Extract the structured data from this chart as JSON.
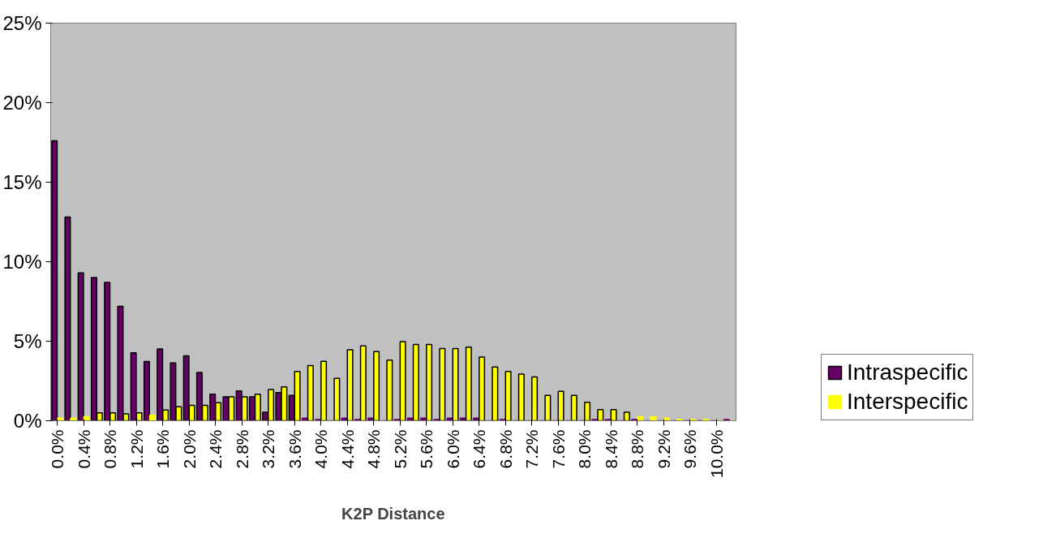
{
  "chart_data": {
    "type": "bar",
    "xlabel": "K2P Distance",
    "categories": [
      "0.0%",
      null,
      "0.4%",
      null,
      "0.8%",
      null,
      "1.2%",
      null,
      "1.6%",
      null,
      "2.0%",
      null,
      "2.4%",
      null,
      "2.8%",
      null,
      "3.2%",
      null,
      "3.6%",
      null,
      "4.0%",
      null,
      "4.4%",
      null,
      "4.8%",
      null,
      "5.2%",
      null,
      "5.6%",
      null,
      "6.0%",
      null,
      "6.4%",
      null,
      "6.8%",
      null,
      "7.2%",
      null,
      "7.6%",
      null,
      "8.0%",
      null,
      "8.4%",
      null,
      "8.8%",
      null,
      "9.2%",
      null,
      "9.6%",
      null,
      "10.0%",
      null
    ],
    "series": [
      {
        "name": "Intraspecific",
        "color": "#660066",
        "values": [
          17.6,
          12.8,
          9.3,
          9.0,
          8.7,
          7.2,
          4.27,
          3.72,
          4.52,
          3.64,
          4.08,
          3.03,
          1.67,
          1.5,
          1.87,
          1.5,
          0.53,
          1.77,
          1.6,
          0.17,
          0.08,
          0,
          0.17,
          0.08,
          0.17,
          0,
          0.08,
          0.17,
          0.17,
          0.08,
          0.17,
          0.17,
          0.17,
          0,
          0.08,
          0,
          0,
          0,
          0,
          0,
          0,
          0.08,
          0.08,
          0,
          0.08,
          0,
          0,
          0,
          0,
          0,
          0,
          0.08
        ]
      },
      {
        "name": "Interspecific",
        "color": "#ffff00",
        "values": [
          0.17,
          0.17,
          0.26,
          0.5,
          0.5,
          0.43,
          0.5,
          0.34,
          0.68,
          0.88,
          0.97,
          0.97,
          1.14,
          1.5,
          1.5,
          1.67,
          1.96,
          2.13,
          3.1,
          3.47,
          3.74,
          2.67,
          4.46,
          4.71,
          4.35,
          3.81,
          4.97,
          4.8,
          4.8,
          4.54,
          4.54,
          4.63,
          4.0,
          3.38,
          3.1,
          2.93,
          2.76,
          1.6,
          1.85,
          1.6,
          1.16,
          0.7,
          0.7,
          0.53,
          0.26,
          0.26,
          0.17,
          0.08,
          0.08,
          0.08,
          0,
          0
        ]
      }
    ],
    "ylim": [
      0,
      25
    ],
    "yticks": [
      {
        "value": 0,
        "label": "0%"
      },
      {
        "value": 5,
        "label": "5%"
      },
      {
        "value": 10,
        "label": "10%"
      },
      {
        "value": 15,
        "label": "15%"
      },
      {
        "value": 20,
        "label": "20%"
      },
      {
        "value": 25,
        "label": "25%"
      }
    ],
    "grid": false,
    "legend": "right"
  }
}
